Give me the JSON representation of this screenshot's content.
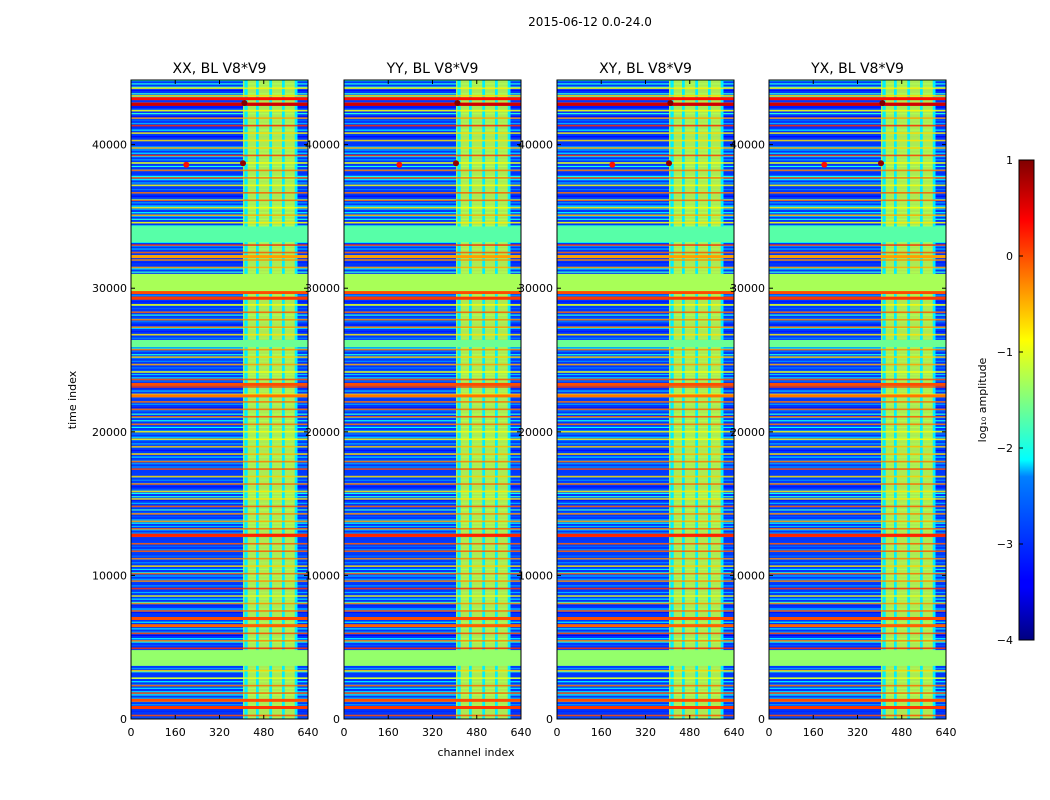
{
  "chart_data": {
    "type": "heatmap",
    "suptitle": "2015-06-12 0.0-24.0",
    "xlabel": "channel index",
    "ylabel": "time index",
    "xlim": [
      0,
      640
    ],
    "ylim": [
      0,
      44500
    ],
    "x_ticks": [
      "0",
      "160",
      "320",
      "480",
      "640"
    ],
    "y_ticks": [
      "0",
      "10000",
      "20000",
      "30000",
      "40000"
    ],
    "panels": [
      {
        "title": "XX, BL V8*V9",
        "polarization": "XX"
      },
      {
        "title": "YY, BL V8*V9",
        "polarization": "YY"
      },
      {
        "title": "XY, BL V8*V9",
        "polarization": "XY"
      },
      {
        "title": "YX, BL V8*V9",
        "polarization": "YX"
      }
    ],
    "colorbar": {
      "label": "log₁₀ amplitude",
      "range": [
        -4,
        1
      ],
      "ticks": [
        "−4",
        "−3",
        "−2",
        "−1",
        "0",
        "1"
      ],
      "colormap": "jet"
    },
    "rfi_channel_band": [
      405,
      600
    ],
    "rfi_channel_columns": [
      {
        "channel": 410,
        "width": 12
      },
      {
        "channel": 452,
        "width": 10
      },
      {
        "channel": 500,
        "width": 10
      },
      {
        "channel": 546,
        "width": 10
      },
      {
        "channel": 592,
        "width": 10
      }
    ],
    "saturated_time_bands": [
      {
        "start": 4800,
        "end": 3700,
        "log_amp": -1.4
      },
      {
        "start": 26400,
        "end": 25900,
        "log_amp": -1.6
      },
      {
        "start": 31000,
        "end": 29800,
        "log_amp": -1.3
      },
      {
        "start": 34300,
        "end": 33200,
        "log_amp": -1.7
      }
    ],
    "strong_time_bands": [
      {
        "t": 800,
        "log_amp": 0.1
      },
      {
        "t": 1300,
        "log_amp": 0.0
      },
      {
        "t": 6500,
        "log_amp": -0.1
      },
      {
        "t": 7000,
        "log_amp": 0.0
      },
      {
        "t": 12800,
        "log_amp": 0.2
      },
      {
        "t": 22500,
        "log_amp": -0.2
      },
      {
        "t": 23300,
        "log_amp": 0.0
      },
      {
        "t": 29300,
        "log_amp": 0.1
      },
      {
        "t": 29700,
        "log_amp": 0.0
      },
      {
        "t": 32200,
        "log_amp": -0.4
      },
      {
        "t": 42800,
        "log_amp": 0.6
      },
      {
        "t": 43200,
        "log_amp": 0.3
      }
    ],
    "bright_spots": [
      {
        "channel": 200,
        "t": 38600,
        "log_amp": 0.3
      },
      {
        "channel": 405,
        "t": 38700,
        "log_amp": 0.9
      },
      {
        "channel": 410,
        "t": 42900,
        "log_amp": 1.0
      }
    ]
  }
}
